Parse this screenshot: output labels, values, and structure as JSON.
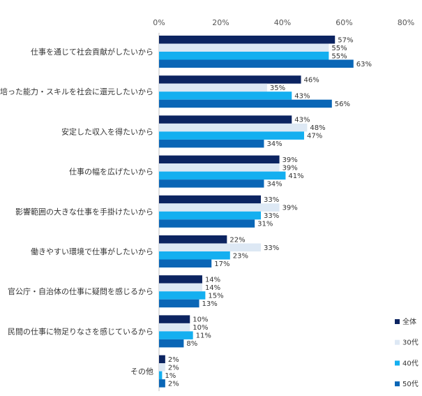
{
  "chart_data": {
    "type": "bar",
    "orientation": "horizontal",
    "categories": [
      "仕事を通じて社会貢献がしたいから",
      "培った能力・スキルを社会に還元したいから",
      "安定した収入を得たいから",
      "仕事の幅を広げたいから",
      "影響範囲の大きな仕事を手掛けたいから",
      "働きやすい環境で仕事がしたいから",
      "官公庁・自治体の仕事に疑問を感じるから",
      "民間の仕事に物足りなさを感じているから",
      "その他"
    ],
    "series": [
      {
        "name": "全体",
        "color": "#0c2461",
        "values": [
          57,
          46,
          43,
          39,
          33,
          22,
          14,
          10,
          2
        ]
      },
      {
        "name": "30代",
        "color": "#dde8f4",
        "values": [
          55,
          35,
          48,
          39,
          39,
          33,
          14,
          10,
          2
        ]
      },
      {
        "name": "40代",
        "color": "#14aff0",
        "values": [
          55,
          43,
          47,
          41,
          33,
          23,
          15,
          11,
          1
        ]
      },
      {
        "name": "50代",
        "color": "#0a66b6",
        "values": [
          63,
          56,
          34,
          34,
          31,
          17,
          13,
          8,
          2
        ]
      }
    ],
    "value_suffix": "%",
    "xlim": [
      0,
      80
    ],
    "xticks": [
      "0%",
      "20%",
      "40%",
      "60%",
      "80%"
    ],
    "xaxis_position": "top",
    "grid": false,
    "legend_position": "bottom-right"
  }
}
